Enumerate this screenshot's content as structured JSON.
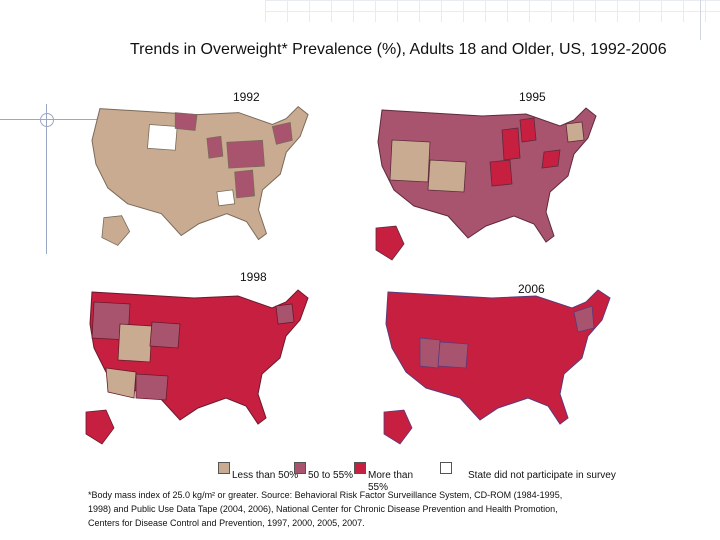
{
  "title": "Trends in Overweight* Prevalence (%), Adults 18 and Older, US, 1992-2006",
  "maps": [
    {
      "year": "1992"
    },
    {
      "year": "1995"
    },
    {
      "year": "1998"
    },
    {
      "year": "2006"
    }
  ],
  "legend": [
    {
      "label": "Less than 50%",
      "color": "#c8ab90"
    },
    {
      "label": "50 to 55%",
      "color": "#a8546f"
    },
    {
      "label": "More than 55%",
      "color": "#c61f40"
    },
    {
      "label": "State did not participate in survey",
      "color": "#ffffff"
    }
  ],
  "footnote": {
    "line1": "*Body mass index of 25.0 kg/m² or greater. Source: Behavioral Risk Factor Surveillance System, CD-ROM (1984-1995,",
    "line2": "1998) and Public Use Data Tape (2004, 2006), National Center for Chronic Disease Prevention and Health Promotion,",
    "line3": "Centers for Disease Control and Prevention, 1997, 2000, 2005, 2007."
  }
}
